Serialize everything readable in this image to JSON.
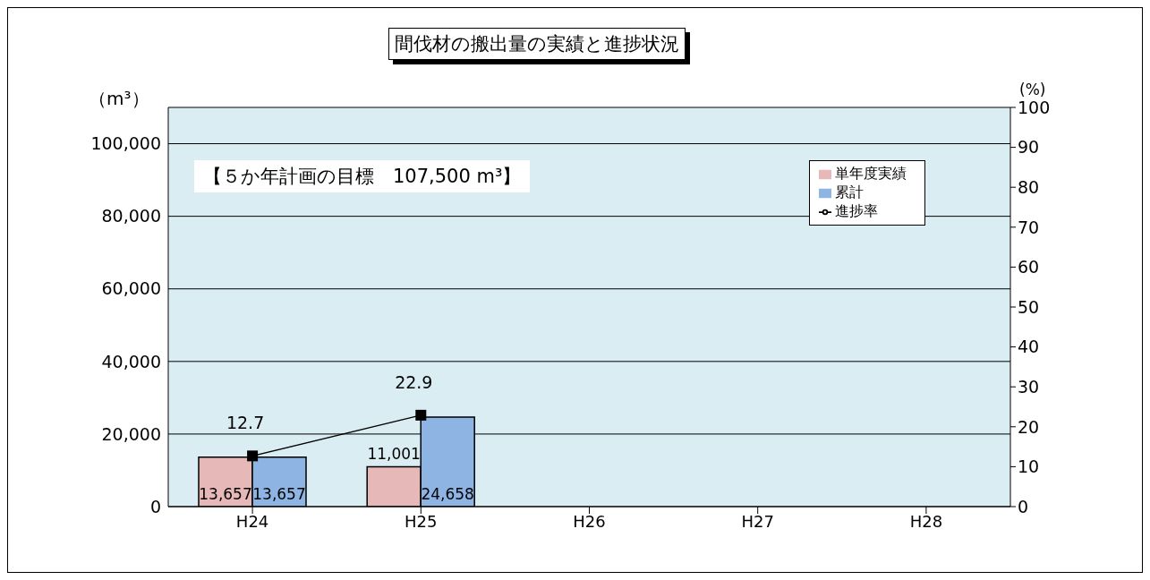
{
  "chart_data": {
    "type": "bar",
    "title": "間伐材の搬出量の実績と進捗状況",
    "ylabel": "（m³）",
    "y2label": "(%)",
    "annotations": [
      "【５か年計画の目標　107,500 m³】"
    ],
    "categories": [
      "H24",
      "H25",
      "H26",
      "H27",
      "H28"
    ],
    "series": [
      {
        "name": "単年度実績",
        "color": "#e6b8b7",
        "values": [
          13657,
          11001,
          null,
          null,
          null
        ],
        "value_labels": [
          "13,657",
          "11,001",
          null,
          null,
          null
        ]
      },
      {
        "name": "累計",
        "color": "#8eb4e3",
        "values": [
          13657,
          24658,
          null,
          null,
          null
        ],
        "value_labels": [
          "13,657",
          "24,658",
          null,
          null,
          null
        ]
      },
      {
        "name": "進捗率",
        "type": "line",
        "axis": "y2",
        "color": "#000000",
        "marker": "square",
        "values": [
          12.7,
          22.9,
          null,
          null,
          null
        ],
        "value_labels": [
          "12.7",
          "22.9",
          null,
          null,
          null
        ]
      }
    ],
    "ylim": [
      0,
      110000
    ],
    "yticks": [
      0,
      {
        "value": 20000,
        "label": "20,000"
      },
      {
        "value": 40000,
        "label": "40,000"
      },
      {
        "value": 60000,
        "label": "60,000"
      },
      {
        "value": 80000,
        "label": "80,000"
      },
      {
        "value": 100000,
        "label": "100,000"
      }
    ],
    "y2lim": [
      0,
      100
    ],
    "y2ticks": [
      0,
      10,
      20,
      30,
      40,
      50,
      60,
      70,
      80,
      90,
      100
    ],
    "grid": "y",
    "legend": "top right"
  }
}
